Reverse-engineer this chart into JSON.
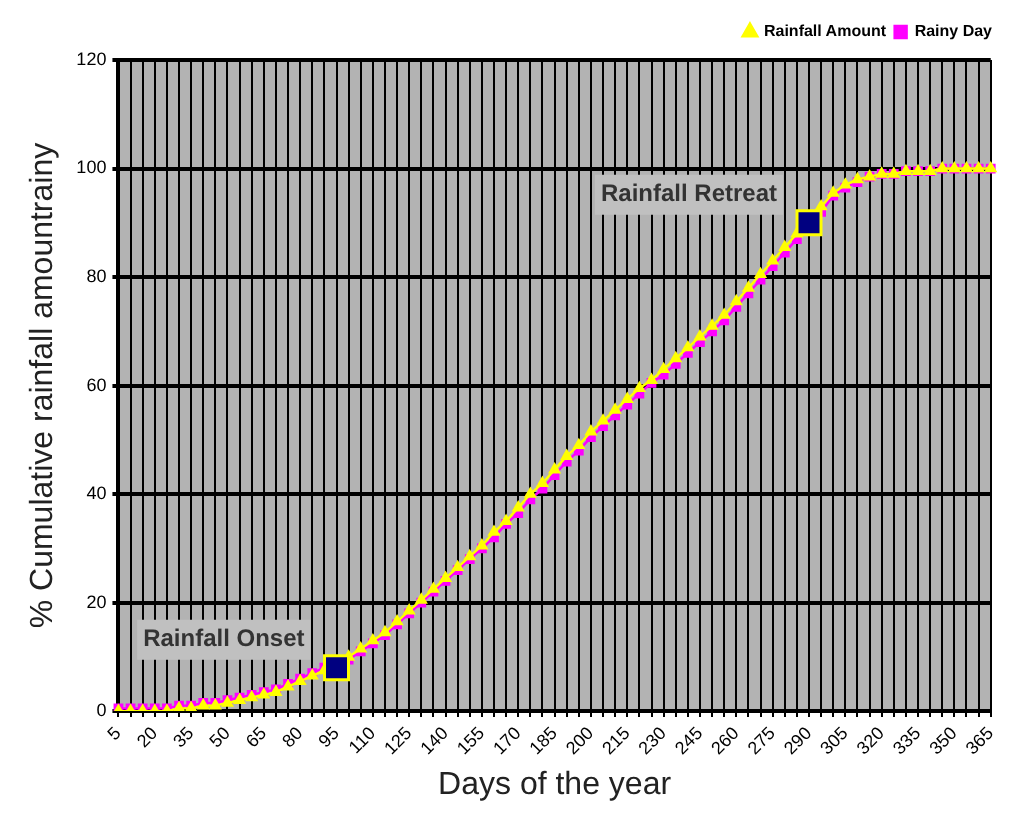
{
  "chart_data": {
    "type": "line",
    "xlabel": "Days of the year",
    "ylabel": "% Cumulative rainfall amountrainy",
    "categories": [
      "5",
      null,
      null,
      "20",
      null,
      null,
      "35",
      null,
      null,
      "50",
      null,
      null,
      "65",
      null,
      null,
      "80",
      null,
      null,
      "95",
      null,
      null,
      "110",
      null,
      null,
      "125",
      null,
      null,
      "140",
      null,
      null,
      "155",
      null,
      null,
      "170",
      null,
      null,
      "185",
      null,
      null,
      "200",
      null,
      null,
      "215",
      null,
      null,
      "230",
      null,
      null,
      "245",
      null,
      null,
      "260",
      null,
      null,
      "275",
      null,
      null,
      "290",
      null,
      null,
      "305",
      null,
      null,
      "320",
      null,
      null,
      "335",
      null,
      null,
      "350",
      null,
      null,
      "365"
    ],
    "series": [
      {
        "name": "Rainy Day",
        "color": "#ff00ff",
        "marker": "square",
        "values": [
          0.5,
          0.5,
          0.5,
          0.5,
          0.5,
          1,
          1,
          1.5,
          1.5,
          2,
          2.5,
          3,
          3.5,
          4,
          5,
          6,
          7,
          8,
          null,
          9.5,
          11,
          12.5,
          14,
          16,
          18,
          20,
          22,
          24,
          26,
          28,
          30,
          32,
          34.5,
          36.5,
          39,
          41,
          43.5,
          46,
          48,
          50.5,
          52.5,
          54.5,
          56.5,
          58.5,
          60.5,
          62,
          64,
          66,
          68,
          70,
          72,
          74.5,
          77,
          79.5,
          82,
          84.5,
          87,
          null,
          92,
          95,
          96.5,
          97.5,
          98.5,
          99,
          99,
          99.5,
          99.5,
          99.5,
          100,
          100,
          100,
          100,
          100
        ]
      },
      {
        "name": "Rainfall Amount",
        "color": "#ffff00",
        "marker": "triangle",
        "values": [
          0,
          0,
          0,
          0,
          0,
          0.5,
          0.5,
          1,
          1,
          1.5,
          2,
          2.5,
          3,
          3.5,
          4.5,
          5.5,
          6.5,
          7.5,
          null,
          10,
          11.5,
          13,
          14.5,
          16.5,
          18.5,
          20.5,
          22.5,
          24.5,
          26.5,
          28.5,
          30.5,
          33,
          35,
          37.5,
          40,
          42,
          44.5,
          47,
          49,
          51.5,
          53.5,
          55.5,
          57.5,
          59.5,
          61,
          63,
          65,
          67,
          69,
          71,
          73,
          75.5,
          78,
          80.5,
          83,
          85.5,
          88,
          null,
          93,
          95.5,
          97,
          98,
          98.5,
          99,
          99,
          99.5,
          99.5,
          99.5,
          100,
          100,
          100,
          100,
          100
        ]
      }
    ],
    "ylim": [
      0,
      120
    ],
    "yticks": [
      0,
      20,
      40,
      60,
      80,
      100,
      120
    ],
    "grid": true,
    "legend": "top right",
    "annotations": [
      {
        "text": "Rainfall Onset",
        "x": "95",
        "y": 8
      },
      {
        "text": "Rainfall Retreat",
        "x": "290",
        "y": 90
      }
    ]
  }
}
